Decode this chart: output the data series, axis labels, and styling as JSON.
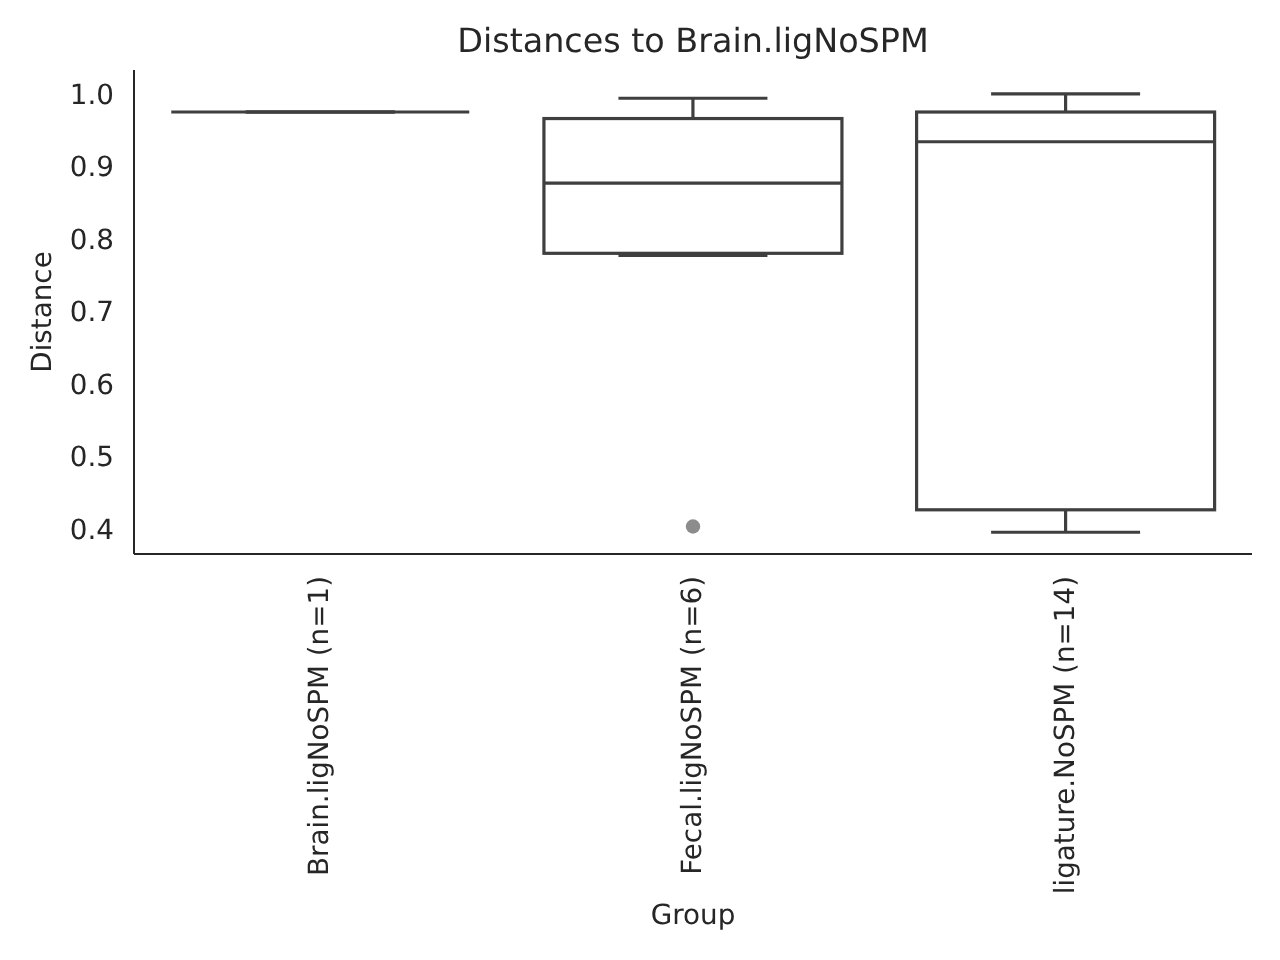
{
  "chart_data": {
    "type": "box",
    "title": "Distances to Brain.ligNoSPM",
    "xlabel": "Group",
    "ylabel": "Distance",
    "categories": [
      "Brain.ligNoSPM (n=1)",
      "Fecal.ligNoSPM (n=6)",
      "ligature.NoSPM (n=14)"
    ],
    "color": "#3f3f3f",
    "marker": "circle",
    "boxes": [
      {
        "low": 0.975,
        "q1": 0.975,
        "median": 0.975,
        "q3": 0.975,
        "high": 0.975
      },
      {
        "low": 0.777,
        "q1": 0.78,
        "median": 0.877,
        "q3": 0.966,
        "high": 0.994,
        "outliers": [
          0.403
        ]
      },
      {
        "low": 0.395,
        "q1": 0.426,
        "median": 0.934,
        "q3": 0.975,
        "high": 1.0
      }
    ],
    "ylim": [
      0.365,
      1.033
    ],
    "yticks": [
      0.4,
      0.5,
      0.6,
      0.7,
      0.8,
      0.9,
      {
        "value": 1,
        "label": "1.0"
      }
    ]
  }
}
